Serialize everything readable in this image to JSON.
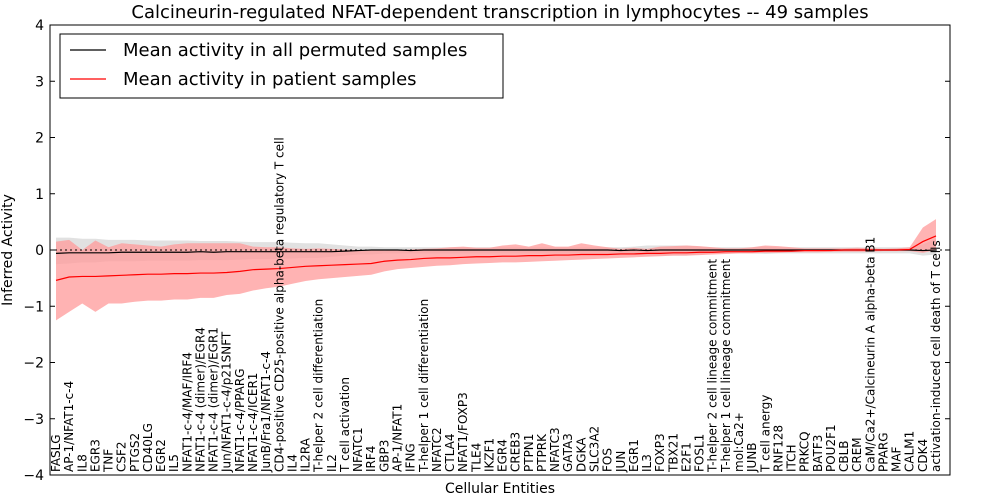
{
  "chart_data": {
    "type": "line",
    "title": "Calcineurin-regulated NFAT-dependent transcription in lymphocytes -- 49 samples",
    "xlabel": "Cellular Entities",
    "ylabel": "Inferred Activity",
    "ylim": [
      -4,
      4
    ],
    "yticks": [
      -4,
      -3,
      -2,
      -1,
      0,
      1,
      2,
      3,
      4
    ],
    "ytick_labels": [
      "−4",
      "−3",
      "−2",
      "−1",
      "0",
      "1",
      "2",
      "3",
      "4"
    ],
    "zero_line": "dotted",
    "legend_position": "top-left",
    "categories": [
      "FASLG",
      "AP-1/NFAT1-c-4",
      "IL8",
      "EGR3",
      "TNF",
      "CSF2",
      "PTGS2",
      "CD40LG",
      "EGR2",
      "IL5",
      "NFAT1-c-4/MAF/IRF4",
      "NFAT1-c-4 (dimer)/EGR4",
      "NFAT1-c-4 (dimer)/EGR1",
      "Jun/NFAT1-c-4/p21SNFT",
      "NFAT1-c-4/PPARG",
      "NFAT1-c-4/ICER1",
      "JunB/Fra1/NFAT1-c-4",
      "CD4-positive CD25-positive alpha-beta regulatory T cell",
      "IL4",
      "IL2RA",
      "T-helper 2 cell differentiation",
      "IL2",
      "T cell activation",
      "NFATC1",
      "IRF4",
      "GBP3",
      "AP-1/NFAT1",
      "IFNG",
      "T-helper 1 cell differentiation",
      "NFATC2",
      "CTLA4",
      "NFAT1/FOXP3",
      "TLE4",
      "IKZF1",
      "EGR4",
      "CREB3",
      "PTPN1",
      "PTPRK",
      "NFATC3",
      "GATA3",
      "DGKA",
      "SLC3A2",
      "FOS",
      "JUN",
      "EGR1",
      "IL3",
      "FOXP3",
      "TBX21",
      "E2F1",
      "FOSL1",
      "T-helper 2 cell lineage commitment",
      "T-helper 1 cell lineage commitment",
      "mol:Ca2+",
      "JUNB",
      "T cell anergy",
      "RNF128",
      "ITCH",
      "PRKCQ",
      "BATF3",
      "POU2F1",
      "CBLB",
      "CREM",
      "CaM/Ca2+/Calcineurin A alpha-beta B1",
      "PPARG",
      "MAF",
      "CALM1",
      "CDK4",
      "activation-induced cell death of T cells"
    ],
    "series": [
      {
        "name": "Mean activity in all permuted samples",
        "color": "#000000",
        "band_color": "#c8c8c8",
        "values": [
          -0.06,
          -0.05,
          -0.05,
          -0.05,
          -0.05,
          -0.04,
          -0.04,
          -0.04,
          -0.04,
          -0.04,
          -0.04,
          -0.03,
          -0.04,
          -0.03,
          -0.03,
          -0.03,
          -0.03,
          -0.03,
          -0.03,
          -0.03,
          -0.03,
          -0.03,
          -0.02,
          -0.01,
          0.0,
          0.0,
          0.0,
          -0.01,
          0.0,
          0.0,
          0.0,
          0.0,
          0.0,
          0.0,
          0.0,
          0.0,
          0.0,
          0.0,
          0.0,
          0.0,
          0.0,
          0.0,
          0.0,
          -0.01,
          0.0,
          -0.01,
          0.0,
          0.0,
          0.0,
          0.0,
          0.0,
          0.0,
          0.0,
          0.0,
          0.0,
          0.0,
          0.0,
          0.0,
          0.0,
          0.0,
          0.0,
          0.0,
          0.0,
          0.0,
          0.0,
          0.0,
          -0.01,
          0.0
        ],
        "upper": [
          0.22,
          0.22,
          0.2,
          0.2,
          0.18,
          0.18,
          0.18,
          0.17,
          0.17,
          0.17,
          0.17,
          0.16,
          0.16,
          0.16,
          0.15,
          0.14,
          0.14,
          0.14,
          0.13,
          0.12,
          0.12,
          0.1,
          0.08,
          0.06,
          0.06,
          0.05,
          0.05,
          0.05,
          0.05,
          0.05,
          0.05,
          0.05,
          0.05,
          0.05,
          0.05,
          0.05,
          0.05,
          0.05,
          0.05,
          0.05,
          0.05,
          0.05,
          0.05,
          0.05,
          0.06,
          0.08,
          0.08,
          0.08,
          0.08,
          0.06,
          0.05,
          0.05,
          0.05,
          0.05,
          0.06,
          0.05,
          0.05,
          0.05,
          0.05,
          0.05,
          0.05,
          0.05,
          0.05,
          0.05,
          0.05,
          0.05,
          0.1,
          0.2
        ],
        "lower": [
          -0.25,
          -0.24,
          -0.22,
          -0.22,
          -0.2,
          -0.2,
          -0.2,
          -0.19,
          -0.19,
          -0.19,
          -0.19,
          -0.18,
          -0.18,
          -0.18,
          -0.17,
          -0.16,
          -0.16,
          -0.16,
          -0.15,
          -0.14,
          -0.14,
          -0.12,
          -0.1,
          -0.08,
          -0.08,
          -0.06,
          -0.06,
          -0.06,
          -0.06,
          -0.06,
          -0.06,
          -0.06,
          -0.06,
          -0.06,
          -0.06,
          -0.06,
          -0.06,
          -0.06,
          -0.06,
          -0.06,
          -0.06,
          -0.06,
          -0.06,
          -0.06,
          -0.08,
          -0.1,
          -0.1,
          -0.1,
          -0.1,
          -0.08,
          -0.06,
          -0.06,
          -0.06,
          -0.06,
          -0.07,
          -0.06,
          -0.06,
          -0.06,
          -0.06,
          -0.06,
          -0.06,
          -0.06,
          -0.06,
          -0.06,
          -0.06,
          -0.06,
          -0.1,
          -0.08
        ]
      },
      {
        "name": "Mean activity in patient samples",
        "color": "#ff0000",
        "band_color": "#ff9a9a",
        "values": [
          -0.54,
          -0.48,
          -0.47,
          -0.47,
          -0.46,
          -0.45,
          -0.44,
          -0.43,
          -0.43,
          -0.42,
          -0.42,
          -0.41,
          -0.41,
          -0.4,
          -0.38,
          -0.35,
          -0.34,
          -0.33,
          -0.31,
          -0.29,
          -0.28,
          -0.27,
          -0.26,
          -0.25,
          -0.24,
          -0.2,
          -0.18,
          -0.17,
          -0.15,
          -0.14,
          -0.14,
          -0.13,
          -0.12,
          -0.12,
          -0.11,
          -0.11,
          -0.1,
          -0.1,
          -0.09,
          -0.09,
          -0.08,
          -0.08,
          -0.08,
          -0.07,
          -0.07,
          -0.06,
          -0.06,
          -0.05,
          -0.05,
          -0.04,
          -0.04,
          -0.03,
          -0.03,
          -0.03,
          -0.02,
          -0.02,
          -0.02,
          -0.01,
          -0.01,
          -0.01,
          0.0,
          0.0,
          0.0,
          0.0,
          0.0,
          0.01,
          0.15,
          0.25
        ],
        "upper": [
          0.15,
          0.18,
          0.0,
          0.17,
          0.05,
          0.12,
          0.1,
          0.08,
          0.06,
          0.1,
          0.12,
          0.12,
          0.12,
          0.12,
          0.12,
          0.06,
          0.05,
          0.05,
          0.03,
          0.02,
          0.03,
          0.02,
          0.01,
          0.0,
          0.0,
          -0.01,
          0.0,
          0.01,
          0.02,
          0.03,
          0.05,
          0.06,
          0.04,
          0.04,
          0.08,
          0.1,
          0.06,
          0.12,
          0.06,
          0.06,
          0.12,
          0.08,
          0.05,
          0.02,
          0.04,
          0.02,
          0.06,
          0.07,
          0.08,
          0.07,
          0.05,
          0.03,
          0.03,
          0.05,
          0.08,
          0.07,
          0.05,
          0.03,
          0.03,
          0.03,
          0.03,
          0.04,
          0.03,
          0.02,
          0.03,
          0.05,
          0.4,
          0.55
        ],
        "lower": [
          -1.25,
          -1.1,
          -0.95,
          -1.1,
          -0.95,
          -0.95,
          -0.92,
          -0.9,
          -0.9,
          -0.88,
          -0.88,
          -0.85,
          -0.85,
          -0.8,
          -0.78,
          -0.72,
          -0.68,
          -0.65,
          -0.6,
          -0.55,
          -0.52,
          -0.5,
          -0.48,
          -0.46,
          -0.44,
          -0.38,
          -0.34,
          -0.32,
          -0.3,
          -0.28,
          -0.27,
          -0.25,
          -0.24,
          -0.23,
          -0.22,
          -0.22,
          -0.21,
          -0.2,
          -0.19,
          -0.18,
          -0.17,
          -0.16,
          -0.15,
          -0.14,
          -0.13,
          -0.12,
          -0.11,
          -0.1,
          -0.1,
          -0.09,
          -0.08,
          -0.07,
          -0.06,
          -0.06,
          -0.05,
          -0.05,
          -0.04,
          -0.04,
          -0.04,
          -0.03,
          -0.03,
          -0.03,
          -0.03,
          -0.02,
          -0.02,
          -0.02,
          -0.05,
          0.0
        ]
      }
    ]
  }
}
